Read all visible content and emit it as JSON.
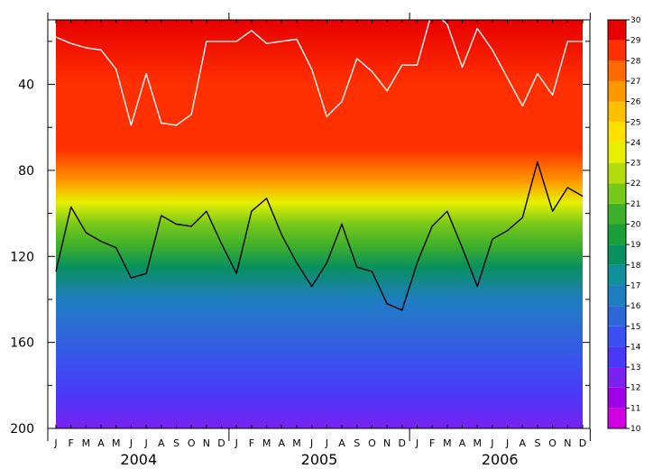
{
  "chart_data": {
    "type": "heatmap",
    "title": "",
    "xlabel": "",
    "ylabel": "",
    "x_months": [
      "J",
      "F",
      "M",
      "A",
      "M",
      "J",
      "J",
      "A",
      "S",
      "O",
      "N",
      "D",
      "J",
      "F",
      "M",
      "A",
      "M",
      "J",
      "J",
      "A",
      "S",
      "O",
      "N",
      "D",
      "J",
      "F",
      "M",
      "A",
      "M",
      "J",
      "J",
      "A",
      "S",
      "O",
      "N",
      "D"
    ],
    "years": [
      "2004",
      "2005",
      "2006"
    ],
    "ylim": [
      200,
      10
    ],
    "y_ticks": [
      40,
      80,
      120,
      160,
      200
    ],
    "colorbar": {
      "levels": [
        10,
        11,
        12,
        13,
        14,
        15,
        16,
        17,
        18,
        19,
        20,
        21,
        22,
        23,
        24,
        25,
        26,
        27,
        28,
        29,
        30
      ],
      "colors": [
        "#d000e0",
        "#a000e8",
        "#7a20f0",
        "#4a38f8",
        "#3a50f0",
        "#2e68d8",
        "#1e7ec0",
        "#10909a",
        "#089060",
        "#1a9e3a",
        "#3fb02a",
        "#78c81a",
        "#b4dc0c",
        "#e6f000",
        "#ffe000",
        "#ffc000",
        "#ff9800",
        "#ff6a00",
        "#ff3000",
        "#e80000",
        "#c00000"
      ]
    },
    "series": [
      {
        "name": "",
        "color": "#ffffff",
        "values": [
          18,
          21,
          23,
          24,
          33,
          59,
          35,
          58,
          59,
          54,
          20,
          20,
          20,
          15,
          21,
          20,
          19,
          33,
          55,
          48,
          28,
          34,
          43,
          31,
          31,
          6,
          12,
          32,
          14,
          24,
          37,
          50,
          35,
          45,
          20,
          20
        ]
      },
      {
        "name": "",
        "color": "#000000",
        "values": [
          127,
          97,
          109,
          113,
          116,
          130,
          128,
          101,
          105,
          106,
          99,
          114,
          128,
          99,
          93,
          110,
          123,
          134,
          123,
          105,
          125,
          127,
          142,
          145,
          123,
          106,
          99,
          116,
          134,
          112,
          108,
          102,
          76,
          99,
          88,
          92
        ]
      }
    ]
  }
}
